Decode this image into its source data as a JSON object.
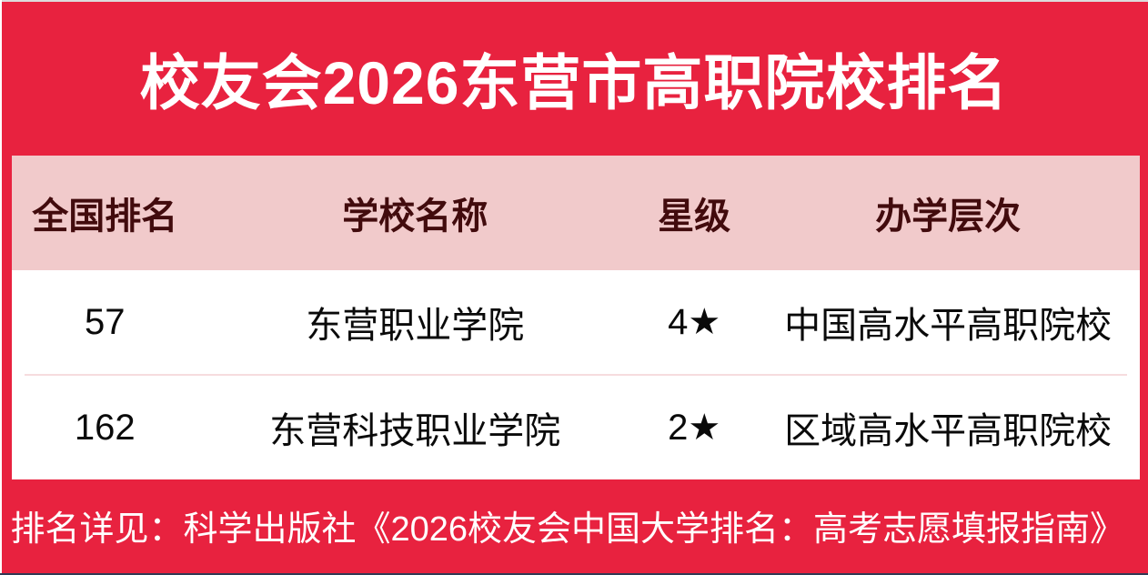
{
  "page": {
    "title": "校友会2026东营市高职院校排名",
    "footer": "排名详见：科学出版社《2026校友会中国大学排名：高考志愿填报指南》",
    "colors": {
      "background_red": "#E8223F",
      "header_pink": "#F1CACB",
      "header_text_maroon": "#420B0D",
      "row_text": "#0A0A0A",
      "title_text": "#FFFFFF"
    }
  },
  "table": {
    "columns": [
      "全国排名",
      "学校名称",
      "星级",
      "办学层次"
    ],
    "rows": [
      {
        "rank": "57",
        "school": "东营职业学院",
        "stars": "4★",
        "level": "中国高水平高职院校"
      },
      {
        "rank": "162",
        "school": "东营科技职业学院",
        "stars": "2★",
        "level": "区域高水平高职院校"
      }
    ]
  },
  "chart_data": {
    "type": "table",
    "title": "校友会2026东营市高职院校排名",
    "columns": [
      "全国排名",
      "学校名称",
      "星级",
      "办学层次"
    ],
    "rows": [
      [
        "57",
        "东营职业学院",
        "4★",
        "中国高水平高职院校"
      ],
      [
        "162",
        "东营科技职业学院",
        "2★",
        "区域高水平高职院校"
      ]
    ],
    "footnote": "排名详见：科学出版社《2026校友会中国大学排名：高考志愿填报指南》",
    "layout_hints": {
      "header_background": "#F1CACB",
      "page_background": "#E8223F",
      "cell_alignment": "center"
    }
  }
}
